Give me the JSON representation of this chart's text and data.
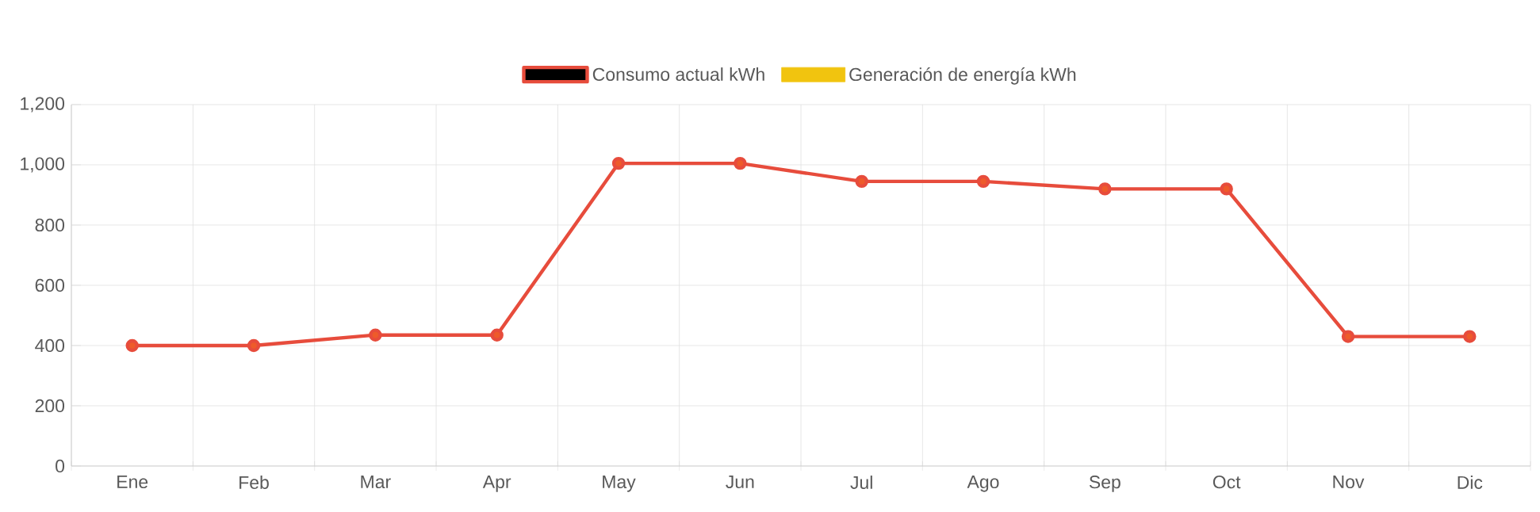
{
  "chart_data": {
    "type": "line",
    "categories": [
      "Ene",
      "Feb",
      "Mar",
      "Apr",
      "May",
      "Jun",
      "Jul",
      "Ago",
      "Sep",
      "Oct",
      "Nov",
      "Dic"
    ],
    "series": [
      {
        "name": "Consumo actual kWh",
        "color": "#e74c3c",
        "values": [
          400,
          400,
          435,
          435,
          1005,
          1005,
          945,
          945,
          920,
          920,
          430,
          430
        ]
      },
      {
        "name": "Generación de energía kWh",
        "color": "#f1c40f",
        "values": [
          null,
          null,
          null,
          null,
          null,
          null,
          null,
          null,
          null,
          null,
          null,
          null
        ]
      }
    ],
    "ylim": [
      0,
      1200
    ],
    "yticks": [
      0,
      200,
      400,
      600,
      800,
      {
        "value": 1000,
        "label": "1,000"
      },
      {
        "value": 1200,
        "label": "1,200"
      }
    ],
    "grid": true,
    "legend": "top",
    "marker": "circle",
    "line_style": "solid"
  }
}
